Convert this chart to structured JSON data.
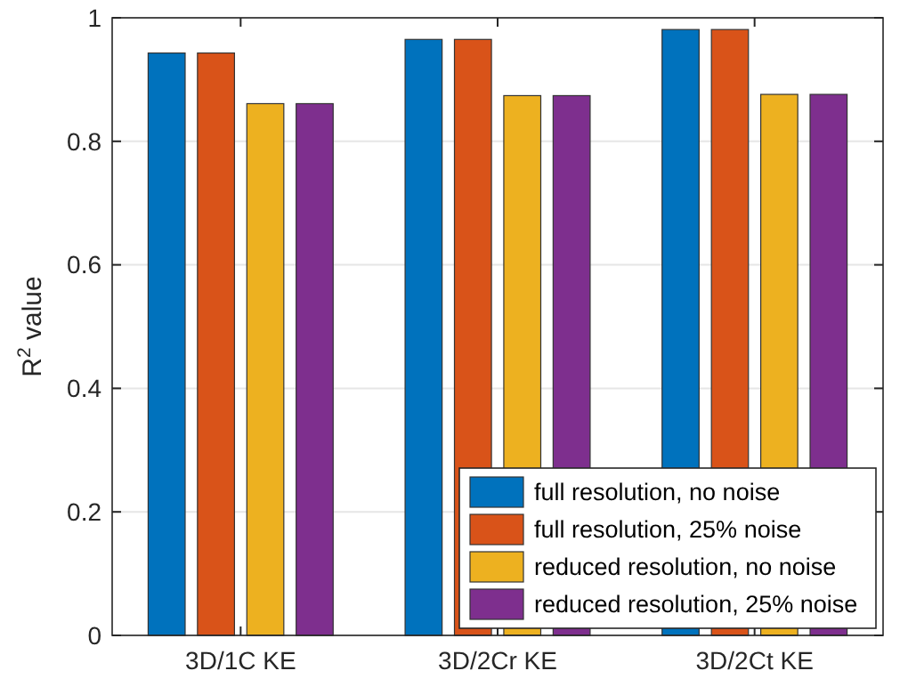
{
  "chart_data": {
    "type": "bar",
    "ylabel": "R$^{2}$ value",
    "categories": [
      "3D/1C KE",
      "3D/2Cr KE",
      "3D/2Ct KE"
    ],
    "series": [
      {
        "name": "full resolution, no noise",
        "color": "#0072bd",
        "values": [
          0.943,
          0.965,
          0.981
        ]
      },
      {
        "name": "full resolution, 25% noise",
        "color": "#d95319",
        "values": [
          0.943,
          0.965,
          0.981
        ]
      },
      {
        "name": "reduced resolution, no noise",
        "color": "#edb120",
        "values": [
          0.861,
          0.874,
          0.876
        ]
      },
      {
        "name": "reduced resolution, 25% noise",
        "color": "#7e2f8e",
        "values": [
          0.861,
          0.874,
          0.876
        ]
      }
    ],
    "ylim": [
      0,
      1
    ],
    "yticks": [
      0,
      0.2,
      0.4,
      0.6,
      0.8,
      1
    ],
    "grid": "y",
    "legend": "bottom right"
  }
}
